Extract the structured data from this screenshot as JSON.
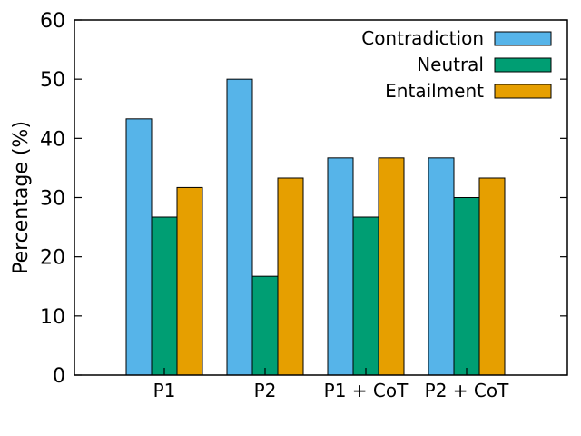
{
  "chart_data": {
    "type": "bar",
    "title": "",
    "xlabel": "",
    "ylabel": "Percentage (%)",
    "ylim": [
      0,
      60
    ],
    "yticks": [
      0,
      10,
      20,
      30,
      40,
      50,
      60
    ],
    "grid": false,
    "legend_position": "top-right",
    "categories": [
      "P1",
      "P2",
      "P1 + CoT",
      "P2 + CoT"
    ],
    "series": [
      {
        "name": "Contradiction",
        "color": "#56B4E9",
        "values": [
          43.3,
          50.0,
          36.7,
          36.7
        ]
      },
      {
        "name": "Neutral",
        "color": "#009E73",
        "values": [
          26.7,
          16.7,
          26.7,
          30.0
        ]
      },
      {
        "name": "Entailment",
        "color": "#E69F00",
        "values": [
          31.7,
          33.3,
          36.7,
          33.3
        ]
      }
    ]
  }
}
